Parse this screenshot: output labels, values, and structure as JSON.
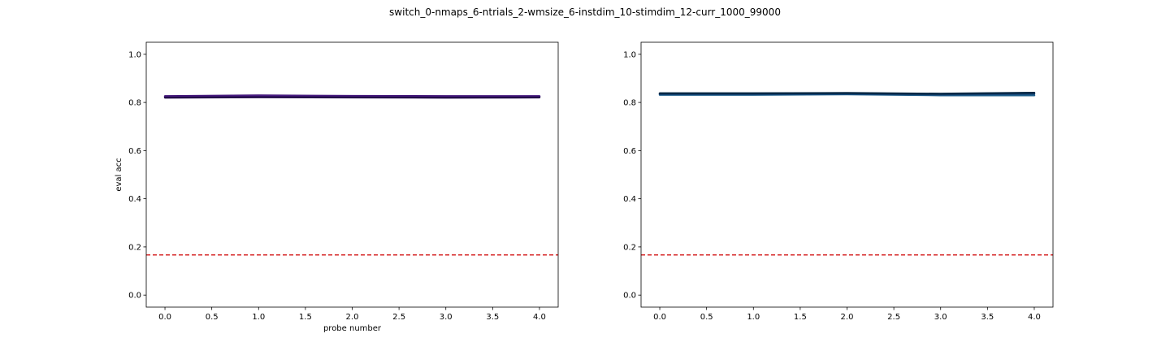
{
  "figure": {
    "title": "switch_0-nmaps_6-ntrials_2-wmsize_6-instdim_10-stimdim_12-curr_1000_99000"
  },
  "chart_data": [
    {
      "type": "line",
      "title": "",
      "xlabel": "probe number",
      "ylabel": "eval acc",
      "xlim": [
        -0.2,
        4.2
      ],
      "ylim": [
        -0.05,
        1.05
      ],
      "x_ticks": [
        "0.0",
        "0.5",
        "1.0",
        "1.5",
        "2.0",
        "2.5",
        "3.0",
        "3.5",
        "4.0"
      ],
      "y_ticks": [
        "0.0",
        "0.2",
        "0.4",
        "0.6",
        "0.8",
        "1.0"
      ],
      "x": [
        0,
        1,
        2,
        3,
        4
      ],
      "series": [
        {
          "color": "#3b0f70",
          "values": [
            0.826,
            0.829,
            0.827,
            0.826,
            0.826
          ]
        },
        {
          "color": "#1f1a5e",
          "values": [
            0.822,
            0.824,
            0.822,
            0.821,
            0.822
          ]
        },
        {
          "color": "#4b1d86",
          "values": [
            0.824,
            0.827,
            0.825,
            0.824,
            0.825
          ]
        },
        {
          "color": "#230c4a",
          "values": [
            0.82,
            0.822,
            0.821,
            0.82,
            0.821
          ]
        }
      ],
      "reference_line": {
        "y": 0.1667,
        "color": "#d62728",
        "style": "dashed"
      },
      "grid": false
    },
    {
      "type": "line",
      "title": "",
      "xlabel": "",
      "ylabel": "",
      "xlim": [
        -0.2,
        4.2
      ],
      "ylim": [
        -0.05,
        1.05
      ],
      "x_ticks": [
        "0.0",
        "0.5",
        "1.0",
        "1.5",
        "2.0",
        "2.5",
        "3.0",
        "3.5",
        "4.0"
      ],
      "y_ticks": [
        "0.0",
        "0.2",
        "0.4",
        "0.6",
        "0.8",
        "1.0"
      ],
      "x": [
        0,
        1,
        2,
        3,
        4
      ],
      "series": [
        {
          "color": "#1f5f8b",
          "values": [
            0.832,
            0.832,
            0.834,
            0.83,
            0.83
          ]
        },
        {
          "color": "#0b2e59",
          "values": [
            0.837,
            0.837,
            0.838,
            0.835,
            0.839
          ]
        },
        {
          "color": "#14467a",
          "values": [
            0.835,
            0.835,
            0.836,
            0.833,
            0.836
          ]
        },
        {
          "color": "#082845",
          "values": [
            0.838,
            0.838,
            0.839,
            0.836,
            0.84
          ]
        }
      ],
      "reference_line": {
        "y": 0.1667,
        "color": "#d62728",
        "style": "dashed"
      },
      "grid": false
    }
  ]
}
